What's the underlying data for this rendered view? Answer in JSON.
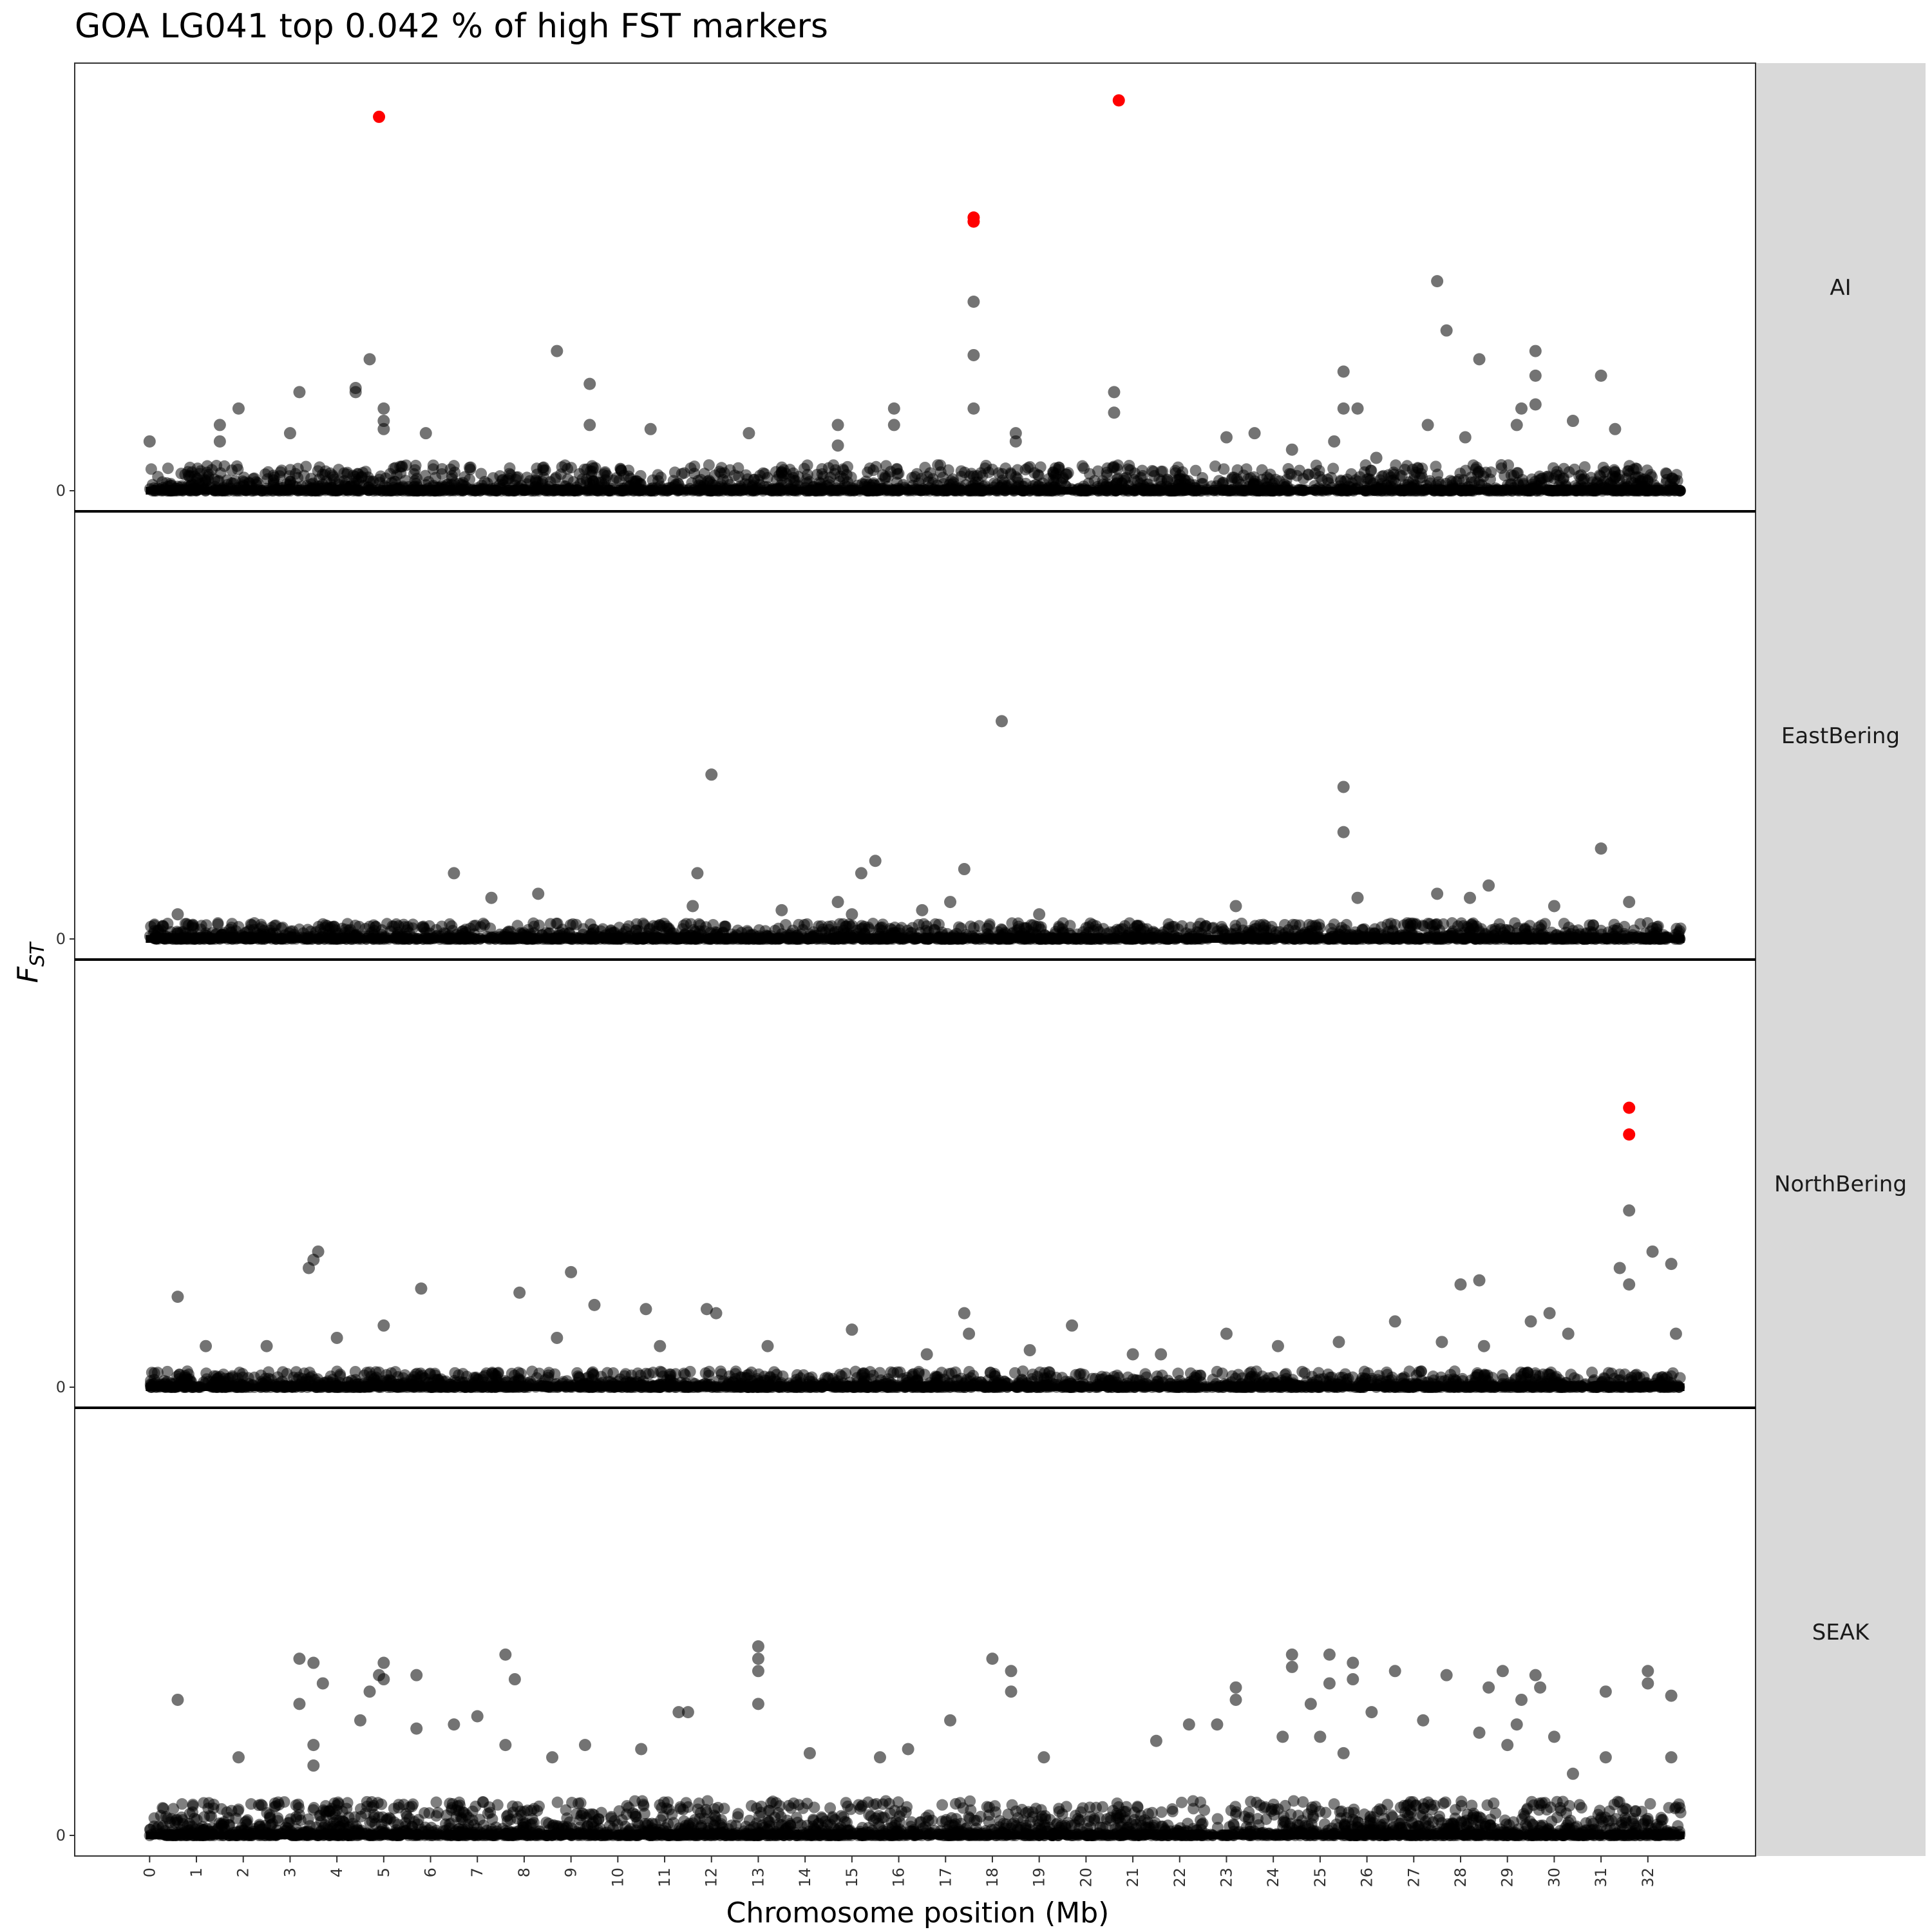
{
  "chart_data": {
    "type": "scatter",
    "title": "GOA LG041 top 0.042 % of high FST markers",
    "xlabel": "Chromosome position (Mb)",
    "ylabel_main": "F",
    "ylabel_sub": "ST",
    "xlim": [
      -1.6,
      34.3
    ],
    "ylim": [
      0,
      1
    ],
    "x_ticks": [
      0,
      1,
      2,
      3,
      4,
      5,
      6,
      7,
      8,
      9,
      10,
      11,
      12,
      13,
      14,
      15,
      16,
      17,
      18,
      19,
      20,
      21,
      22,
      23,
      24,
      25,
      26,
      27,
      28,
      29,
      30,
      31,
      32
    ],
    "x_tick_labels": [
      "0",
      "1",
      "2",
      "3",
      "4",
      "5",
      "6",
      "7",
      "8",
      "9",
      "10",
      "11",
      "12",
      "13",
      "14",
      "15",
      "16",
      "17",
      "18",
      "19",
      "20",
      "21",
      "22",
      "23",
      "24",
      "25",
      "26",
      "27",
      "28",
      "29",
      "30",
      "31",
      "32"
    ],
    "y_tick_labels": [
      "0"
    ],
    "colors": {
      "normal": "#000000",
      "outlier": "#ff0000",
      "strip_bg": "#d9d9d9"
    },
    "grid": false,
    "facets": [
      {
        "label": "AI",
        "outliers": [
          [
            4.9,
            0.91
          ],
          [
            17.6,
            0.655
          ],
          [
            17.6,
            0.665
          ],
          [
            20.7,
            0.95
          ]
        ],
        "points": [
          [
            4.7,
            0.32
          ],
          [
            4.4,
            0.25
          ],
          [
            4.4,
            0.24
          ],
          [
            5.0,
            0.2
          ],
          [
            5.0,
            0.17
          ],
          [
            5.0,
            0.15
          ],
          [
            3.2,
            0.24
          ],
          [
            1.9,
            0.2
          ],
          [
            1.5,
            0.16
          ],
          [
            1.5,
            0.12
          ],
          [
            0.0,
            0.12
          ],
          [
            3.0,
            0.14
          ],
          [
            5.9,
            0.14
          ],
          [
            8.7,
            0.34
          ],
          [
            9.4,
            0.26
          ],
          [
            9.4,
            0.16
          ],
          [
            10.7,
            0.15
          ],
          [
            12.8,
            0.14
          ],
          [
            14.7,
            0.16
          ],
          [
            14.7,
            0.11
          ],
          [
            15.9,
            0.2
          ],
          [
            15.9,
            0.16
          ],
          [
            17.6,
            0.46
          ],
          [
            17.6,
            0.33
          ],
          [
            17.6,
            0.2
          ],
          [
            18.5,
            0.14
          ],
          [
            18.5,
            0.12
          ],
          [
            20.6,
            0.24
          ],
          [
            20.6,
            0.19
          ],
          [
            23.0,
            0.13
          ],
          [
            23.6,
            0.14
          ],
          [
            25.5,
            0.29
          ],
          [
            25.5,
            0.2
          ],
          [
            25.8,
            0.2
          ],
          [
            25.3,
            0.12
          ],
          [
            27.3,
            0.16
          ],
          [
            27.5,
            0.51
          ],
          [
            27.7,
            0.39
          ],
          [
            28.1,
            0.13
          ],
          [
            28.4,
            0.32
          ],
          [
            29.3,
            0.2
          ],
          [
            29.6,
            0.34
          ],
          [
            29.6,
            0.28
          ],
          [
            29.6,
            0.21
          ],
          [
            29.2,
            0.16
          ],
          [
            30.4,
            0.17
          ],
          [
            31.0,
            0.28
          ],
          [
            31.3,
            0.15
          ],
          [
            26.2,
            0.08
          ],
          [
            24.4,
            0.1
          ]
        ]
      },
      {
        "label": "EastBering",
        "outliers": [],
        "points": [
          [
            18.2,
            0.53
          ],
          [
            12.0,
            0.4
          ],
          [
            25.5,
            0.37
          ],
          [
            25.5,
            0.26
          ],
          [
            31.0,
            0.22
          ],
          [
            15.5,
            0.19
          ],
          [
            15.2,
            0.16
          ],
          [
            17.4,
            0.17
          ],
          [
            11.7,
            0.16
          ],
          [
            6.5,
            0.16
          ],
          [
            7.3,
            0.1
          ],
          [
            8.3,
            0.11
          ],
          [
            11.6,
            0.08
          ],
          [
            13.5,
            0.07
          ],
          [
            14.7,
            0.09
          ],
          [
            15.0,
            0.06
          ],
          [
            16.5,
            0.07
          ],
          [
            17.1,
            0.09
          ],
          [
            19.0,
            0.06
          ],
          [
            23.2,
            0.08
          ],
          [
            25.8,
            0.1
          ],
          [
            27.5,
            0.11
          ],
          [
            28.2,
            0.1
          ],
          [
            28.6,
            0.13
          ],
          [
            30.0,
            0.08
          ],
          [
            31.6,
            0.09
          ],
          [
            0.6,
            0.06
          ]
        ]
      },
      {
        "label": "NorthBering",
        "outliers": [
          [
            31.6,
            0.68
          ],
          [
            31.6,
            0.615
          ]
        ],
        "points": [
          [
            31.6,
            0.43
          ],
          [
            32.1,
            0.33
          ],
          [
            32.5,
            0.3
          ],
          [
            31.4,
            0.29
          ],
          [
            31.6,
            0.25
          ],
          [
            28.0,
            0.25
          ],
          [
            28.4,
            0.26
          ],
          [
            29.9,
            0.18
          ],
          [
            29.5,
            0.16
          ],
          [
            26.6,
            0.16
          ],
          [
            3.6,
            0.33
          ],
          [
            3.5,
            0.31
          ],
          [
            3.4,
            0.29
          ],
          [
            0.6,
            0.22
          ],
          [
            5.8,
            0.24
          ],
          [
            7.9,
            0.23
          ],
          [
            9.0,
            0.28
          ],
          [
            9.5,
            0.2
          ],
          [
            10.6,
            0.19
          ],
          [
            11.9,
            0.19
          ],
          [
            12.1,
            0.18
          ],
          [
            17.4,
            0.18
          ],
          [
            17.5,
            0.13
          ],
          [
            19.7,
            0.15
          ],
          [
            15.0,
            0.14
          ],
          [
            5.0,
            0.15
          ],
          [
            1.2,
            0.1
          ],
          [
            2.5,
            0.1
          ],
          [
            4.0,
            0.12
          ],
          [
            8.7,
            0.12
          ],
          [
            10.9,
            0.1
          ],
          [
            13.2,
            0.1
          ],
          [
            16.6,
            0.08
          ],
          [
            21.0,
            0.08
          ],
          [
            23.0,
            0.13
          ],
          [
            24.1,
            0.1
          ],
          [
            25.4,
            0.11
          ],
          [
            27.6,
            0.11
          ],
          [
            28.5,
            0.1
          ],
          [
            30.3,
            0.13
          ],
          [
            32.6,
            0.13
          ],
          [
            18.8,
            0.09
          ],
          [
            21.6,
            0.08
          ]
        ]
      },
      {
        "label": "SEAK",
        "outliers": [],
        "points": [
          [
            13.0,
            0.46
          ],
          [
            13.0,
            0.43
          ],
          [
            13.0,
            0.4
          ],
          [
            13.0,
            0.32
          ],
          [
            0.6,
            0.33
          ],
          [
            3.2,
            0.43
          ],
          [
            3.2,
            0.32
          ],
          [
            3.5,
            0.42
          ],
          [
            3.7,
            0.37
          ],
          [
            4.7,
            0.35
          ],
          [
            4.9,
            0.39
          ],
          [
            5.0,
            0.42
          ],
          [
            5.0,
            0.38
          ],
          [
            5.7,
            0.39
          ],
          [
            5.7,
            0.26
          ],
          [
            4.5,
            0.28
          ],
          [
            3.5,
            0.22
          ],
          [
            3.5,
            0.17
          ],
          [
            1.9,
            0.19
          ],
          [
            6.5,
            0.27
          ],
          [
            7.6,
            0.44
          ],
          [
            7.8,
            0.38
          ],
          [
            7.0,
            0.29
          ],
          [
            7.6,
            0.22
          ],
          [
            8.6,
            0.19
          ],
          [
            9.3,
            0.22
          ],
          [
            10.5,
            0.21
          ],
          [
            11.3,
            0.3
          ],
          [
            11.5,
            0.3
          ],
          [
            14.1,
            0.2
          ],
          [
            15.6,
            0.19
          ],
          [
            16.2,
            0.21
          ],
          [
            17.1,
            0.28
          ],
          [
            18.0,
            0.43
          ],
          [
            18.4,
            0.4
          ],
          [
            18.4,
            0.35
          ],
          [
            19.1,
            0.19
          ],
          [
            21.5,
            0.23
          ],
          [
            22.2,
            0.27
          ],
          [
            22.8,
            0.27
          ],
          [
            23.2,
            0.36
          ],
          [
            23.2,
            0.33
          ],
          [
            24.4,
            0.44
          ],
          [
            24.4,
            0.41
          ],
          [
            24.8,
            0.32
          ],
          [
            25.2,
            0.37
          ],
          [
            25.2,
            0.44
          ],
          [
            25.7,
            0.42
          ],
          [
            25.7,
            0.38
          ],
          [
            26.1,
            0.3
          ],
          [
            26.6,
            0.4
          ],
          [
            27.2,
            0.28
          ],
          [
            27.7,
            0.39
          ],
          [
            28.6,
            0.36
          ],
          [
            28.9,
            0.4
          ],
          [
            29.3,
            0.33
          ],
          [
            29.6,
            0.39
          ],
          [
            29.7,
            0.36
          ],
          [
            30.0,
            0.24
          ],
          [
            31.1,
            0.35
          ],
          [
            31.1,
            0.19
          ],
          [
            32.0,
            0.4
          ],
          [
            32.0,
            0.37
          ],
          [
            32.5,
            0.34
          ],
          [
            32.5,
            0.19
          ],
          [
            29.2,
            0.27
          ],
          [
            28.4,
            0.25
          ],
          [
            29.0,
            0.22
          ],
          [
            30.4,
            0.15
          ],
          [
            24.2,
            0.24
          ],
          [
            25.0,
            0.24
          ],
          [
            25.5,
            0.2
          ]
        ]
      }
    ]
  }
}
